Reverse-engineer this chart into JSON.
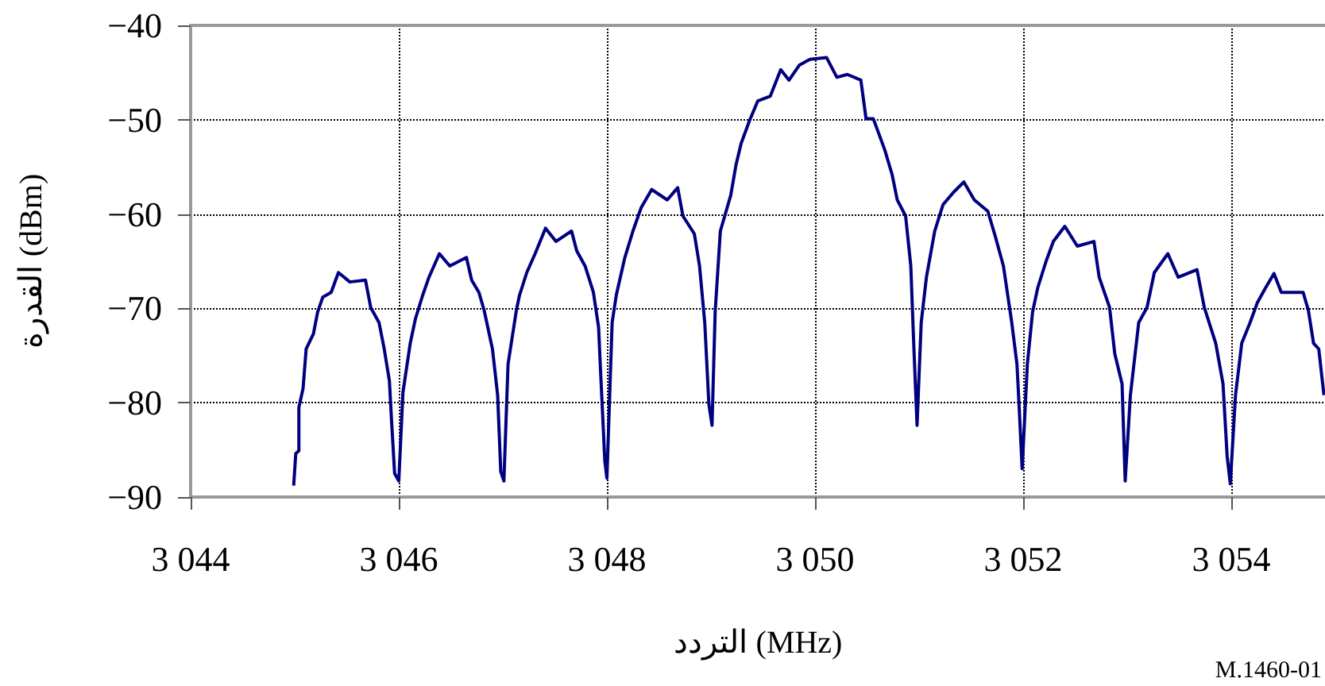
{
  "chart_data": {
    "type": "line",
    "xlabel": "التردد (MHz)",
    "ylabel": "القدرة (dBm)",
    "annotations": [
      "M.1460-01"
    ],
    "xlim": [
      3044,
      3054.9
    ],
    "ylim": [
      -90,
      -40
    ],
    "xticks": [
      {
        "value": 3044,
        "label": "3 044"
      },
      {
        "value": 3046,
        "label": "3 046"
      },
      {
        "value": 3048,
        "label": "3 048"
      },
      {
        "value": 3050,
        "label": "3 050"
      },
      {
        "value": 3052,
        "label": "3 052"
      },
      {
        "value": 3054,
        "label": "3 054"
      }
    ],
    "yticks": [
      {
        "value": -90,
        "label": "−90"
      },
      {
        "value": -80,
        "label": "−80"
      },
      {
        "value": -70,
        "label": "−70"
      },
      {
        "value": -60,
        "label": "−60"
      },
      {
        "value": -50,
        "label": "−50"
      },
      {
        "value": -40,
        "label": "−40"
      }
    ],
    "grid": true,
    "marker": "none",
    "line_style": "solid",
    "series": [
      {
        "color": "#000080",
        "x": [
          3044.99,
          3045.01,
          3045.04,
          3045.04,
          3045.08,
          3045.11,
          3045.18,
          3045.22,
          3045.27,
          3045.35,
          3045.42,
          3045.53,
          3045.68,
          3045.73,
          3045.81,
          3045.86,
          3045.91,
          3045.93,
          3045.96,
          3046.0,
          3046.04,
          3046.11,
          3046.16,
          3046.23,
          3046.29,
          3046.39,
          3046.49,
          3046.65,
          3046.7,
          3046.77,
          3046.82,
          3046.9,
          3046.95,
          3046.98,
          3047.01,
          3047.05,
          3047.13,
          3047.16,
          3047.23,
          3047.31,
          3047.41,
          3047.51,
          3047.66,
          3047.71,
          3047.79,
          3047.87,
          3047.92,
          3047.94,
          3047.98,
          3048.0,
          3048.05,
          3048.09,
          3048.17,
          3048.25,
          3048.33,
          3048.43,
          3048.58,
          3048.68,
          3048.73,
          3048.84,
          3048.89,
          3048.94,
          3048.98,
          3049.01,
          3049.04,
          3049.09,
          3049.19,
          3049.24,
          3049.29,
          3049.37,
          3049.45,
          3049.57,
          3049.67,
          3049.75,
          3049.85,
          3049.95,
          3050.11,
          3050.21,
          3050.31,
          3050.44,
          3050.49,
          3050.56,
          3050.67,
          3050.74,
          3050.79,
          3050.87,
          3050.92,
          3050.95,
          3050.98,
          3051.02,
          3051.07,
          3051.15,
          3051.23,
          3051.33,
          3051.43,
          3051.53,
          3051.66,
          3051.73,
          3051.81,
          3051.89,
          3051.94,
          3051.96,
          3051.99,
          3052.04,
          3052.09,
          3052.14,
          3052.22,
          3052.29,
          3052.4,
          3052.52,
          3052.68,
          3052.73,
          3052.83,
          3052.88,
          3052.95,
          3052.98,
          3053.03,
          3053.11,
          3053.19,
          3053.26,
          3053.39,
          3053.49,
          3053.67,
          3053.74,
          3053.85,
          3053.92,
          3053.96,
          3053.99,
          3054.04,
          3054.1,
          3054.18,
          3054.25,
          3054.33,
          3054.41,
          3054.48,
          3054.58,
          3054.69,
          3054.74,
          3054.79,
          3054.84,
          3054.89
        ],
        "values": [
          -88.8,
          -85.4,
          -85.1,
          -80.5,
          -78.5,
          -74.3,
          -72.7,
          -70.4,
          -68.8,
          -68.3,
          -66.2,
          -67.2,
          -67.0,
          -69.9,
          -71.5,
          -74.3,
          -77.7,
          -81.8,
          -87.5,
          -88.3,
          -78.9,
          -73.7,
          -71.1,
          -68.6,
          -66.7,
          -64.2,
          -65.5,
          -64.6,
          -67.0,
          -68.3,
          -70.2,
          -74.3,
          -79.2,
          -87.3,
          -88.3,
          -75.9,
          -70.2,
          -68.6,
          -66.2,
          -64.2,
          -61.5,
          -62.9,
          -61.8,
          -63.9,
          -65.5,
          -68.3,
          -72.0,
          -76.9,
          -86.2,
          -88.0,
          -71.5,
          -68.6,
          -64.7,
          -61.8,
          -59.3,
          -57.4,
          -58.5,
          -57.2,
          -60.2,
          -62.1,
          -65.5,
          -71.5,
          -80.2,
          -82.4,
          -70.4,
          -61.8,
          -58.0,
          -54.8,
          -52.5,
          -50.1,
          -48.0,
          -47.5,
          -44.7,
          -45.8,
          -44.2,
          -43.6,
          -43.4,
          -45.5,
          -45.2,
          -45.8,
          -49.9,
          -49.9,
          -53.2,
          -55.8,
          -58.5,
          -60.2,
          -65.5,
          -74.3,
          -82.4,
          -71.5,
          -66.7,
          -61.8,
          -59.0,
          -57.7,
          -56.6,
          -58.5,
          -59.7,
          -62.3,
          -65.5,
          -71.5,
          -75.9,
          -80.2,
          -87.0,
          -75.9,
          -70.4,
          -67.8,
          -65.0,
          -62.9,
          -61.3,
          -63.4,
          -62.9,
          -66.7,
          -69.9,
          -74.8,
          -78.0,
          -88.3,
          -79.2,
          -71.5,
          -69.9,
          -66.2,
          -64.2,
          -66.7,
          -65.9,
          -69.9,
          -73.7,
          -78.0,
          -85.7,
          -88.6,
          -79.2,
          -73.7,
          -71.5,
          -69.4,
          -67.8,
          -66.3,
          -68.3,
          -68.3,
          -68.3,
          -70.2,
          -73.7,
          -74.3,
          -79.2
        ]
      }
    ]
  }
}
